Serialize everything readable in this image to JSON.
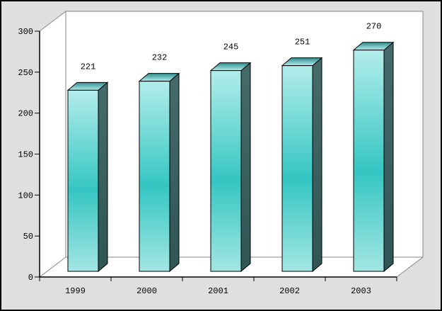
{
  "window": {
    "background_color": "#dfdfdf",
    "frame_color": "#000000"
  },
  "chart_data": {
    "type": "bar",
    "style": "3d-column",
    "title": "",
    "xlabel": "",
    "ylabel": "",
    "categories": [
      "1999",
      "2000",
      "2001",
      "2002",
      "2003"
    ],
    "values": [
      221,
      232,
      245,
      251,
      270
    ],
    "value_labels": [
      "221",
      "232",
      "245",
      "251",
      "270"
    ],
    "ylim": [
      0,
      300
    ],
    "ytick_interval": 50,
    "ytick_labels": [
      "0",
      "50",
      "100",
      "150",
      "200",
      "250",
      "300"
    ],
    "grid": false,
    "legend": false,
    "wall_fill": "#ffffff",
    "colors": {
      "bar_front_top": "#b2edeb",
      "bar_front_mid": "#35c6c2",
      "bar_front_bottom": "#a3e6e3",
      "bar_side_top": "#456b6b",
      "bar_side_bottom": "#2f5555",
      "bar_top_back": "#2e8e8e",
      "bar_top_front": "#b4edec",
      "bar_outline": "#000000",
      "wall_edge": "#878787",
      "axis": "#000000",
      "text": "#000000"
    }
  }
}
